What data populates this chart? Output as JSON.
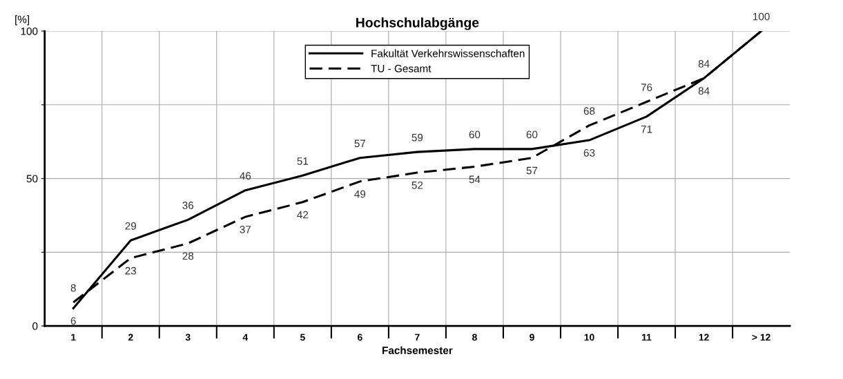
{
  "chart_data": {
    "type": "line",
    "title": "Hochschulabgänge",
    "xlabel": "Fachsemester",
    "ylabel": "[%]",
    "categories": [
      "1",
      "2",
      "3",
      "4",
      "5",
      "6",
      "7",
      "8",
      "9",
      "10",
      "11",
      "12",
      "> 12"
    ],
    "ylim": [
      0,
      100
    ],
    "yticks": [
      0,
      {
        "value": 25,
        "label": null
      },
      50,
      {
        "value": 75,
        "label": null
      },
      100
    ],
    "grid": true,
    "legend": "top",
    "marker": "none",
    "series": [
      {
        "name": "Fakultät Verkehrswissenschaften",
        "color": "#000000",
        "line_style": "solid",
        "values": [
          6,
          29,
          36,
          46,
          51,
          57,
          59,
          60,
          60,
          63,
          71,
          84,
          100
        ],
        "value_labels": [
          "6",
          "29",
          "36",
          "46",
          "51",
          "57",
          "59",
          "60",
          "60",
          "63",
          "71",
          "84",
          "100"
        ]
      },
      {
        "name": "TU - Gesamt",
        "color": "#000000",
        "line_style": "dashed",
        "values": [
          8,
          23,
          28,
          37,
          42,
          49,
          52,
          54,
          57,
          68,
          76,
          84,
          100
        ],
        "value_labels": [
          "8",
          "23",
          "28",
          "37",
          "42",
          "49",
          "52",
          "54",
          "57",
          "68",
          "76",
          "84",
          null
        ]
      }
    ]
  }
}
